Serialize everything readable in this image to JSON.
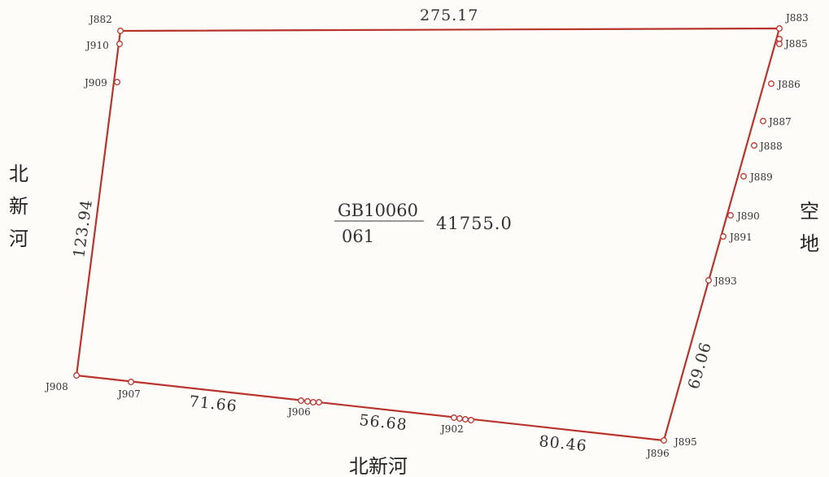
{
  "colors": {
    "boundary": "#b8342c",
    "vertex": "#b8342c",
    "text": "#333333",
    "background": "#fdfcf8"
  },
  "parcel": {
    "id_top": "GB10060",
    "id_bottom": "061",
    "area": "41755.0"
  },
  "edge_lengths": {
    "top": "275.17",
    "left": "123.94",
    "bottom_west": "71.66",
    "bottom_middle": "56.68",
    "bottom_east": "80.46",
    "east_lower": "69.06"
  },
  "neighbors": {
    "west": "北新河",
    "south": "北新河",
    "east": "空地"
  },
  "points": {
    "J882": "J882",
    "J910": "J910",
    "J909": "J909",
    "J883": "J883",
    "J885": "J885",
    "J886": "J886",
    "J887": "J887",
    "J888": "J888",
    "J889": "J889",
    "J890": "J890",
    "J891": "J891",
    "J893": "J893",
    "J895": "J895",
    "J896": "J896",
    "J902": "J902",
    "J906": "J906",
    "J907": "J907",
    "J908": "J908"
  }
}
